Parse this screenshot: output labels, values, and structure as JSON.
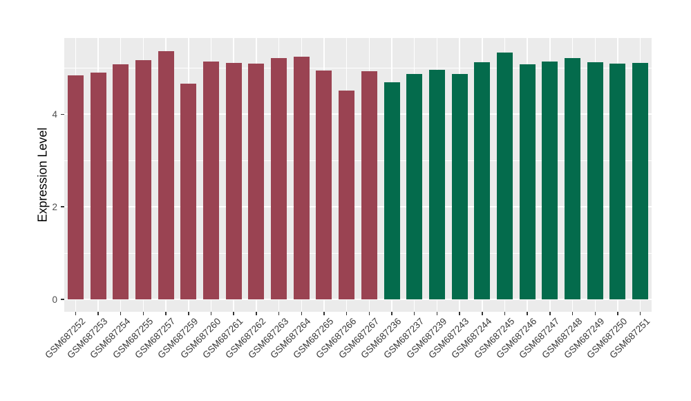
{
  "chart_data": {
    "type": "bar",
    "title": "",
    "xlabel": "",
    "ylabel": "Expression Level",
    "ylim": [
      0,
      5.6
    ],
    "yticks": [
      "0",
      "2",
      "4"
    ],
    "ytick_values": [
      0,
      2,
      4
    ],
    "minor_grid_values": [
      1,
      3,
      5
    ],
    "grid": "on",
    "legend": "none",
    "panel_bg": "#EBEBEB",
    "grid_color": "#FFFFFF",
    "categories": [
      "GSM687252",
      "GSM687253",
      "GSM687254",
      "GSM687255",
      "GSM687257",
      "GSM687259",
      "GSM687260",
      "GSM687261",
      "GSM687262",
      "GSM687263",
      "GSM687264",
      "GSM687265",
      "GSM687266",
      "GSM687267",
      "GSM687236",
      "GSM687237",
      "GSM687239",
      "GSM687243",
      "GSM687244",
      "GSM687245",
      "GSM687246",
      "GSM687247",
      "GSM687248",
      "GSM687249",
      "GSM687250",
      "GSM687251"
    ],
    "values": [
      4.85,
      4.91,
      5.08,
      5.17,
      5.36,
      4.66,
      5.14,
      5.11,
      5.1,
      5.21,
      5.24,
      4.95,
      4.51,
      4.94,
      4.69,
      4.88,
      4.96,
      4.87,
      5.13,
      5.34,
      5.08,
      5.14,
      5.22,
      5.13,
      5.1,
      5.11
    ],
    "bar_group": [
      "red",
      "red",
      "red",
      "red",
      "red",
      "red",
      "red",
      "red",
      "red",
      "red",
      "red",
      "red",
      "red",
      "red",
      "green",
      "green",
      "green",
      "green",
      "green",
      "green",
      "green",
      "green",
      "green",
      "green",
      "green",
      "green"
    ],
    "group_colors": {
      "red": "#9A4352",
      "green": "#046B4C"
    }
  }
}
